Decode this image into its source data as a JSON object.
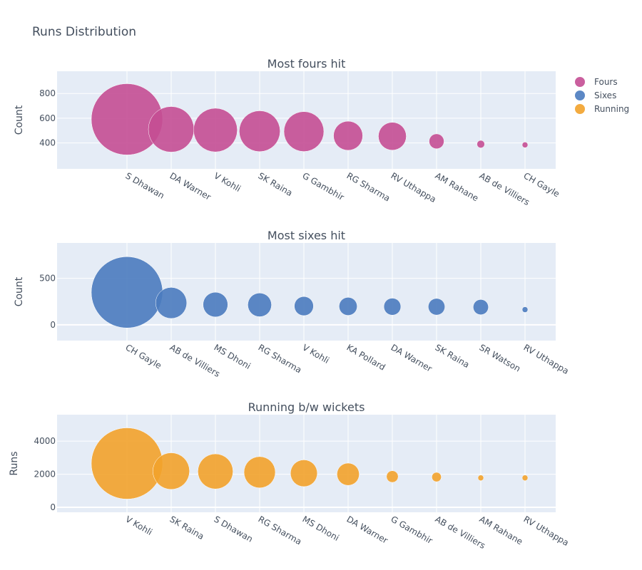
{
  "title": "Runs Distribution",
  "colors": {
    "fours": "#c44e93",
    "sixes": "#4a7bbf",
    "running": "#f2a22b",
    "plot_bg": "#e5ecf6",
    "grid": "#ffffff"
  },
  "legend": [
    "Fours",
    "Sixes",
    "Running"
  ],
  "chart_data": [
    {
      "type": "scatter",
      "title": "Most fours hit",
      "ylabel": "Count",
      "series_name": "Fours",
      "categories": [
        "S Dhawan",
        "DA Warner",
        "V Kohli",
        "SK Raina",
        "G Gambhir",
        "RG Sharma",
        "RV Uthappa",
        "AM Rahane",
        "AB de Villiers",
        "CH Gayle"
      ],
      "values": [
        591,
        510,
        504,
        495,
        492,
        458,
        454,
        413,
        390,
        384
      ],
      "ylim": [
        190,
        980
      ],
      "yticks": [
        400,
        600,
        800
      ]
    },
    {
      "type": "scatter",
      "title": "Most sixes hit",
      "ylabel": "Count",
      "series_name": "Sixes",
      "categories": [
        "CH Gayle",
        "AB de Villiers",
        "MS Dhoni",
        "RG Sharma",
        "V Kohli",
        "KA Pollard",
        "DA Warner",
        "SK Raina",
        "SR Watson",
        "RV Uthappa"
      ],
      "values": [
        349,
        235,
        217,
        214,
        201,
        198,
        195,
        194,
        190,
        163
      ],
      "ylim": [
        -170,
        880
      ],
      "yticks": [
        0,
        500
      ]
    },
    {
      "type": "scatter",
      "title": "Running b/w wickets",
      "ylabel": "Runs",
      "series_name": "Running",
      "categories": [
        "V Kohli",
        "SK Raina",
        "S Dhawan",
        "RG Sharma",
        "MS Dhoni",
        "DA Warner",
        "G Gambhir",
        "AB de Villiers",
        "AM Rahane",
        "RV Uthappa"
      ],
      "values": [
        2650,
        2190,
        2170,
        2120,
        2060,
        2000,
        1860,
        1830,
        1780,
        1780
      ],
      "ylim": [
        -300,
        5600
      ],
      "yticks": [
        0,
        2000,
        4000
      ]
    }
  ]
}
